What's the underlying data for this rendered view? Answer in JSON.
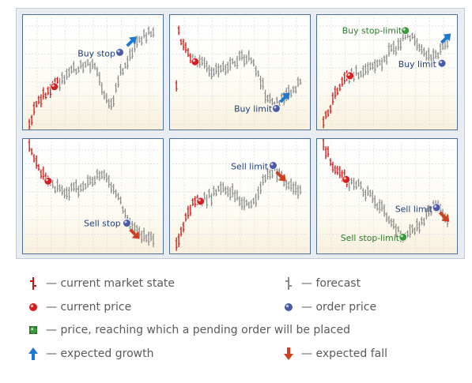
{
  "panels": [
    {
      "id": "buy-stop",
      "labels": [
        {
          "text": "Buy stop",
          "color": "#1f3f7a"
        }
      ]
    },
    {
      "id": "buy-limit",
      "labels": [
        {
          "text": "Buy limit",
          "color": "#1f3f7a"
        }
      ]
    },
    {
      "id": "buy-stop-limit",
      "labels": [
        {
          "text": "Buy stop-limit",
          "color": "#2c7a2c"
        },
        {
          "text": "Buy limit",
          "color": "#1f3f7a"
        }
      ]
    },
    {
      "id": "sell-stop",
      "labels": [
        {
          "text": "Sell stop",
          "color": "#1f3f7a"
        }
      ]
    },
    {
      "id": "sell-limit",
      "labels": [
        {
          "text": "Sell limit",
          "color": "#1f3f7a"
        }
      ]
    },
    {
      "id": "sell-stop-limit",
      "labels": [
        {
          "text": "Sell limit",
          "color": "#1f3f7a"
        },
        {
          "text": "Sell stop-limit",
          "color": "#2c7a2c"
        }
      ]
    }
  ],
  "legend": {
    "market_state": "— current market state",
    "forecast": "— forecast",
    "current_price": "— current price",
    "order_price": "— order price",
    "pending_trigger": "— price, reaching which a pending order will be placed",
    "growth": "— expected growth",
    "fall": "— expected fall"
  },
  "colors": {
    "market_bar": "#cc1111",
    "forecast_bar": "#8a8a8a",
    "current_price": "#d42020",
    "order_price": "#4a5aa8",
    "trigger_price": "#3a9a3a",
    "growth_arrow": "#1e78d0",
    "fall_arrow": "#d04020",
    "panel_border": "#4d6f97"
  },
  "icons": {
    "market_state": "red-bar-icon",
    "forecast": "gray-bar-icon",
    "current_price": "red-dot-icon",
    "order_price": "blue-dot-icon",
    "pending_trigger": "green-dot-icon",
    "growth": "up-arrow-icon",
    "fall": "down-arrow-icon"
  }
}
